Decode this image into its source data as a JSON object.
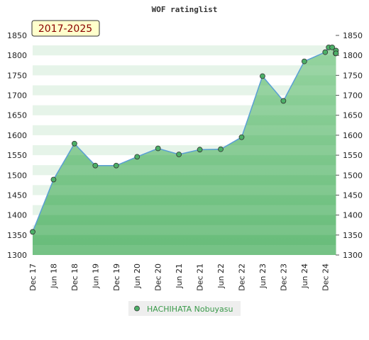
{
  "chart_data": {
    "type": "area",
    "title": "WOF ratinglist",
    "badge": "2017-2025",
    "xlabel": "",
    "ylabel": "",
    "ylim": [
      1300,
      1850
    ],
    "yticks": [
      1300,
      1350,
      1400,
      1450,
      1500,
      1550,
      1600,
      1650,
      1700,
      1750,
      1800,
      1850
    ],
    "xlim": [
      "2017-12",
      "2025-03"
    ],
    "xticks": [
      {
        "label": "Dec 17",
        "x": "2017-12"
      },
      {
        "label": "Jun 18",
        "x": "2018-06"
      },
      {
        "label": "Dec 18",
        "x": "2018-12"
      },
      {
        "label": "Jun 19",
        "x": "2019-06"
      },
      {
        "label": "Dec 19",
        "x": "2019-12"
      },
      {
        "label": "Jun 20",
        "x": "2020-06"
      },
      {
        "label": "Dec 20",
        "x": "2020-12"
      },
      {
        "label": "Jun 21",
        "x": "2021-06"
      },
      {
        "label": "Dec 21",
        "x": "2021-12"
      },
      {
        "label": "Jun 22",
        "x": "2022-06"
      },
      {
        "label": "Dec 22",
        "x": "2022-12"
      },
      {
        "label": "Jun 23",
        "x": "2023-06"
      },
      {
        "label": "Dec 23",
        "x": "2023-12"
      },
      {
        "label": "Jun 24",
        "x": "2024-06"
      },
      {
        "label": "Dec 24",
        "x": "2024-12"
      }
    ],
    "series": [
      {
        "name": "HACHIHATA Nobuyasu",
        "color": "#5a9fd4",
        "marker_color": "#4caf67",
        "points": [
          {
            "x": "2017-12",
            "y": 1358
          },
          {
            "x": "2018-06",
            "y": 1489
          },
          {
            "x": "2018-12",
            "y": 1579
          },
          {
            "x": "2019-06",
            "y": 1524
          },
          {
            "x": "2019-12",
            "y": 1524
          },
          {
            "x": "2020-06",
            "y": 1546
          },
          {
            "x": "2020-12",
            "y": 1567
          },
          {
            "x": "2021-06",
            "y": 1552
          },
          {
            "x": "2021-12",
            "y": 1564
          },
          {
            "x": "2022-06",
            "y": 1565
          },
          {
            "x": "2022-12",
            "y": 1595
          },
          {
            "x": "2023-06",
            "y": 1748
          },
          {
            "x": "2023-12",
            "y": 1686
          },
          {
            "x": "2024-06",
            "y": 1785
          },
          {
            "x": "2024-12",
            "y": 1808
          },
          {
            "x": "2025-01",
            "y": 1820
          },
          {
            "x": "2025-02",
            "y": 1820
          },
          {
            "x": "2025-03",
            "y": 1805
          },
          {
            "x": "2025-04",
            "y": 1812
          },
          {
            "x": "2025-05",
            "y": 1805
          }
        ]
      }
    ],
    "grid": true,
    "legend": "bottom"
  }
}
